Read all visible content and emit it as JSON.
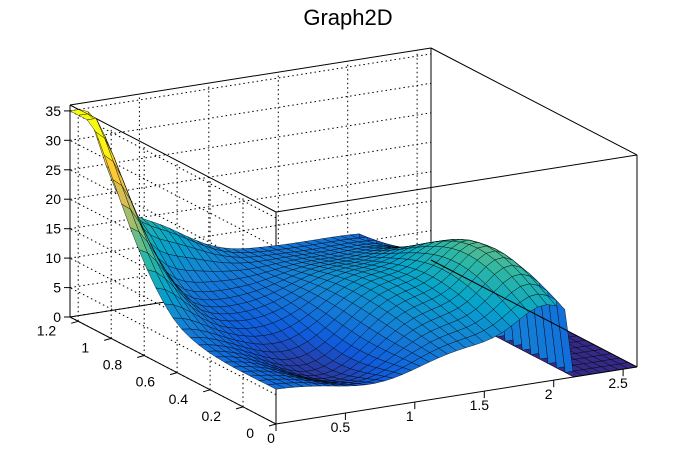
{
  "chart_data": {
    "type": "surface",
    "title": "Graph2D",
    "xlabel": "",
    "ylabel": "",
    "zlabel": "",
    "xlim": [
      0,
      2.6
    ],
    "ylim": [
      0,
      1.25
    ],
    "zlim": [
      0,
      36
    ],
    "grid": true,
    "legend": "none",
    "x_ticks": [
      "0",
      "0.5",
      "1",
      "1.5",
      "2",
      "2.5"
    ],
    "y_ticks": [
      "0",
      "0.2",
      "0.4",
      "0.6",
      "0.8",
      "1",
      "1.2"
    ],
    "z_ticks": [
      "0",
      "5",
      "10",
      "15",
      "20",
      "25",
      "30",
      "35"
    ],
    "colormap": [
      "#352a87",
      "#0f5cdd",
      "#1481d6",
      "#06a4ca",
      "#2eb7a4",
      "#87bf77",
      "#d1bb59",
      "#fec832",
      "#f9fb0e"
    ],
    "line_color": "#000000",
    "grid_color": "#000000"
  }
}
